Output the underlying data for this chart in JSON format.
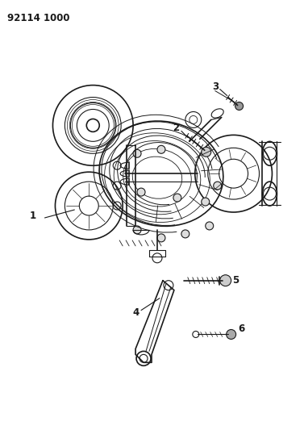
{
  "title_code": "92114 1000",
  "background_color": "#ffffff",
  "line_color": "#1a1a1a",
  "label_color": "#000000",
  "fig_width": 3.77,
  "fig_height": 5.33,
  "dpi": 100,
  "part_number_fontsize": 8.5
}
